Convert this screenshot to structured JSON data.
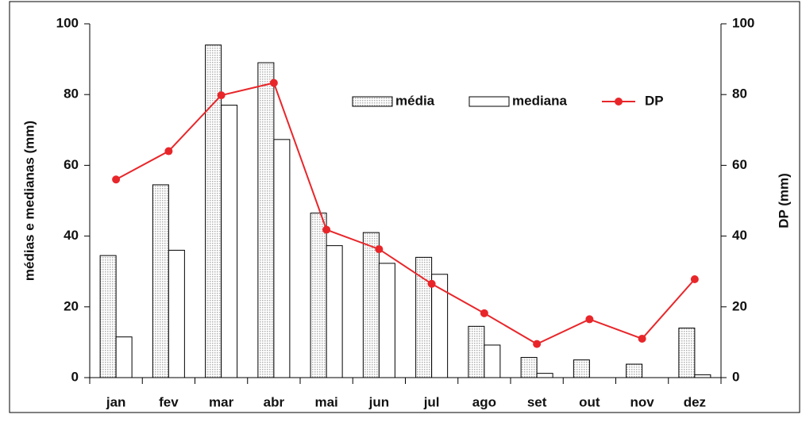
{
  "chart_data": {
    "type": "bar_line",
    "y_label": "médias e medianas (mm)",
    "y2_label": "DP (mm)",
    "categories": [
      "jan",
      "fev",
      "mar",
      "abr",
      "mai",
      "jun",
      "jul",
      "ago",
      "set",
      "out",
      "nov",
      "dez"
    ],
    "series": [
      {
        "name": "média",
        "type": "bar",
        "color": "#b0b0b0",
        "values": [
          34.5,
          54.5,
          94,
          89,
          46.5,
          41,
          34,
          14.5,
          5.7,
          5,
          3.8,
          14
        ]
      },
      {
        "name": "mediana",
        "type": "bar",
        "color": "#ffffff",
        "values": [
          11.5,
          36,
          77,
          67.3,
          37.3,
          32.3,
          29.2,
          9.2,
          1.2,
          0,
          0,
          0.8
        ]
      },
      {
        "name": "DP",
        "type": "line",
        "axis": "y2",
        "color": "#e8262a",
        "values": [
          56,
          64,
          79.8,
          83.3,
          41.8,
          36.3,
          26.5,
          18.2,
          9.5,
          16.5,
          11,
          27.8
        ]
      }
    ],
    "ylim": [
      0,
      100
    ],
    "yticks": [
      0,
      20,
      40,
      60,
      80,
      100
    ],
    "y2lim": [
      0,
      100
    ],
    "y2ticks": [
      0,
      20,
      40,
      60,
      80,
      100
    ],
    "grid": false
  }
}
